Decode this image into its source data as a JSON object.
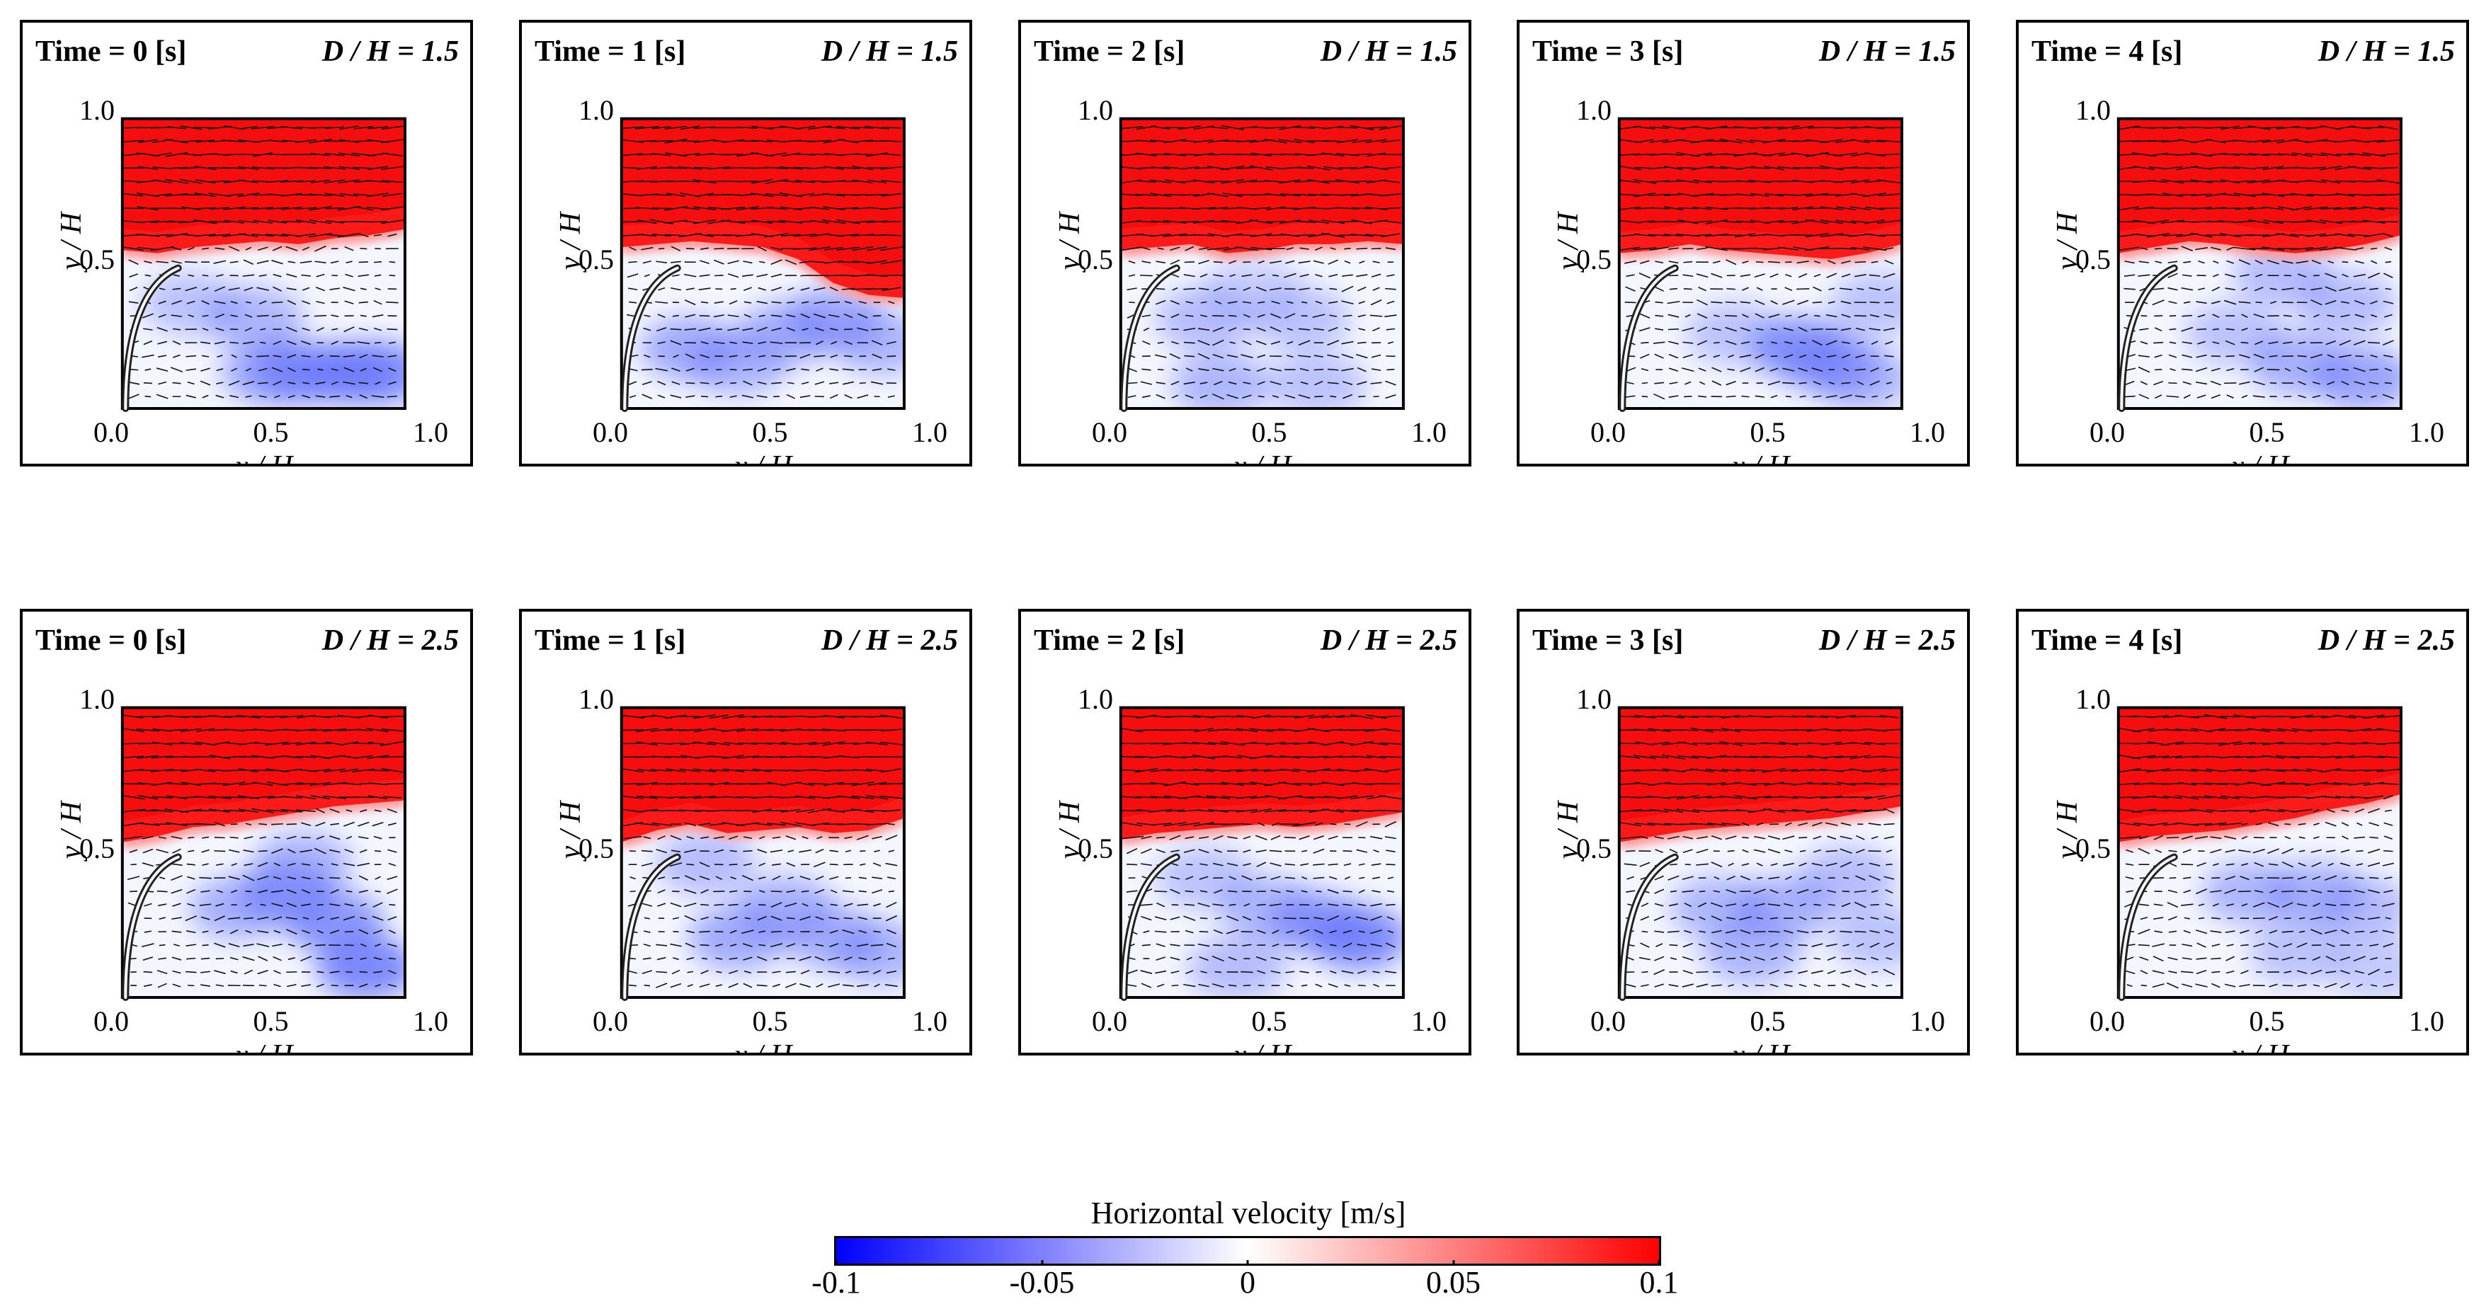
{
  "chart_data": {
    "type": "heatmap",
    "description_kind": "grid of velocity-field panels",
    "time_unit": "[s]",
    "panels": [
      {
        "time_label": "Time = 0 [s]",
        "dh_label": "D / H = 1.5",
        "time": 0,
        "d_over_h": 1.5,
        "interface_y": [
          0.53,
          0.52,
          0.54,
          0.55,
          0.56,
          0.55,
          0.57,
          0.58,
          0.6
        ],
        "blue_cells": [
          [
            0.25,
            0.35,
            0.4
          ],
          [
            0.45,
            0.3,
            0.5
          ],
          [
            0.6,
            0.12,
            0.75
          ],
          [
            0.75,
            0.12,
            0.8
          ],
          [
            0.85,
            0.12,
            0.7
          ],
          [
            0.5,
            0.12,
            0.6
          ]
        ]
      },
      {
        "time_label": "Time = 1 [s]",
        "dh_label": "D / H = 1.5",
        "time": 1,
        "d_over_h": 1.5,
        "interface_y": [
          0.54,
          0.55,
          0.56,
          0.55,
          0.54,
          0.5,
          0.42,
          0.38,
          0.37
        ],
        "blue_cells": [
          [
            0.25,
            0.2,
            0.6
          ],
          [
            0.4,
            0.15,
            0.5
          ],
          [
            0.55,
            0.25,
            0.55
          ],
          [
            0.7,
            0.3,
            0.6
          ],
          [
            0.85,
            0.22,
            0.5
          ]
        ]
      },
      {
        "time_label": "Time = 2 [s]",
        "dh_label": "D / H = 1.5",
        "time": 2,
        "d_over_h": 1.5,
        "interface_y": [
          0.53,
          0.54,
          0.55,
          0.52,
          0.53,
          0.55,
          0.55,
          0.56,
          0.55
        ],
        "blue_cells": [
          [
            0.3,
            0.3,
            0.45
          ],
          [
            0.45,
            0.4,
            0.3
          ],
          [
            0.6,
            0.3,
            0.4
          ],
          [
            0.35,
            0.08,
            0.5
          ],
          [
            0.65,
            0.08,
            0.4
          ]
        ]
      },
      {
        "time_label": "Time = 3 [s]",
        "dh_label": "D / H = 1.5",
        "time": 3,
        "d_over_h": 1.5,
        "interface_y": [
          0.52,
          0.53,
          0.55,
          0.53,
          0.52,
          0.51,
          0.5,
          0.52,
          0.55
        ],
        "blue_cells": [
          [
            0.4,
            0.25,
            0.4
          ],
          [
            0.6,
            0.2,
            0.75
          ],
          [
            0.7,
            0.15,
            0.6
          ],
          [
            0.85,
            0.35,
            0.4
          ],
          [
            0.8,
            0.1,
            0.5
          ]
        ]
      },
      {
        "time_label": "Time = 4 [s]",
        "dh_label": "D / H = 1.5",
        "time": 4,
        "d_over_h": 1.5,
        "interface_y": [
          0.52,
          0.54,
          0.56,
          0.55,
          0.53,
          0.52,
          0.53,
          0.55,
          0.58
        ],
        "blue_cells": [
          [
            0.55,
            0.45,
            0.45
          ],
          [
            0.75,
            0.35,
            0.45
          ],
          [
            0.6,
            0.15,
            0.55
          ],
          [
            0.8,
            0.1,
            0.65
          ],
          [
            0.4,
            0.25,
            0.4
          ]
        ]
      },
      {
        "time_label": "Time = 0 [s]",
        "dh_label": "D / H = 2.5",
        "time": 0,
        "d_over_h": 2.5,
        "interface_y": [
          0.52,
          0.54,
          0.57,
          0.58,
          0.6,
          0.62,
          0.64,
          0.65,
          0.66
        ],
        "blue_cells": [
          [
            0.4,
            0.3,
            0.55
          ],
          [
            0.55,
            0.35,
            0.65
          ],
          [
            0.7,
            0.25,
            0.75
          ],
          [
            0.8,
            0.1,
            0.85
          ],
          [
            0.6,
            0.45,
            0.5
          ]
        ]
      },
      {
        "time_label": "Time = 1 [s]",
        "dh_label": "D / H = 2.5",
        "time": 1,
        "d_over_h": 2.5,
        "interface_y": [
          0.52,
          0.56,
          0.58,
          0.55,
          0.56,
          0.57,
          0.55,
          0.56,
          0.6
        ],
        "blue_cells": [
          [
            0.4,
            0.2,
            0.6
          ],
          [
            0.55,
            0.3,
            0.55
          ],
          [
            0.7,
            0.2,
            0.55
          ],
          [
            0.3,
            0.45,
            0.45
          ],
          [
            0.85,
            0.15,
            0.5
          ]
        ]
      },
      {
        "time_label": "Time = 2 [s]",
        "dh_label": "D / H = 2.5",
        "time": 2,
        "d_over_h": 2.5,
        "interface_y": [
          0.53,
          0.55,
          0.56,
          0.57,
          0.58,
          0.57,
          0.58,
          0.6,
          0.62
        ],
        "blue_cells": [
          [
            0.5,
            0.3,
            0.5
          ],
          [
            0.65,
            0.25,
            0.65
          ],
          [
            0.78,
            0.2,
            0.85
          ],
          [
            0.4,
            0.1,
            0.45
          ],
          [
            0.3,
            0.4,
            0.4
          ]
        ]
      },
      {
        "time_label": "Time = 3 [s]",
        "dh_label": "D / H = 2.5",
        "time": 3,
        "d_over_h": 2.5,
        "interface_y": [
          0.52,
          0.54,
          0.56,
          0.57,
          0.58,
          0.59,
          0.6,
          0.62,
          0.64
        ],
        "blue_cells": [
          [
            0.35,
            0.3,
            0.5
          ],
          [
            0.55,
            0.3,
            0.55
          ],
          [
            0.45,
            0.15,
            0.5
          ],
          [
            0.75,
            0.4,
            0.45
          ],
          [
            0.85,
            0.2,
            0.4
          ]
        ]
      },
      {
        "time_label": "Time = 4 [s]",
        "dh_label": "D / H = 2.5",
        "time": 4,
        "d_over_h": 2.5,
        "interface_y": [
          0.52,
          0.54,
          0.55,
          0.56,
          0.58,
          0.6,
          0.63,
          0.65,
          0.68
        ],
        "blue_cells": [
          [
            0.45,
            0.35,
            0.5
          ],
          [
            0.65,
            0.35,
            0.5
          ],
          [
            0.8,
            0.3,
            0.45
          ],
          [
            0.6,
            0.15,
            0.4
          ],
          [
            0.85,
            0.1,
            0.35
          ]
        ]
      }
    ],
    "xlabel": "x / H",
    "ylabel": "y / H",
    "x_ticks": [
      "0.0",
      "0.5",
      "1.0"
    ],
    "y_ticks": [
      "0.5",
      "1.0"
    ],
    "xlim": [
      0.0,
      1.0
    ],
    "ylim": [
      0.0,
      1.0
    ],
    "colorbar": {
      "title": "Horizontal velocity [m/s]",
      "min": -0.1,
      "max": 0.1,
      "tick_labels": [
        "-0.1",
        "-0.05",
        "0",
        "0.05",
        "0.1"
      ],
      "tick_values": [
        -0.1,
        -0.05,
        0,
        0.05,
        0.1
      ],
      "colors": {
        "low": "#0000ff",
        "mid": "#ffffff",
        "high": "#ff0000"
      }
    }
  }
}
